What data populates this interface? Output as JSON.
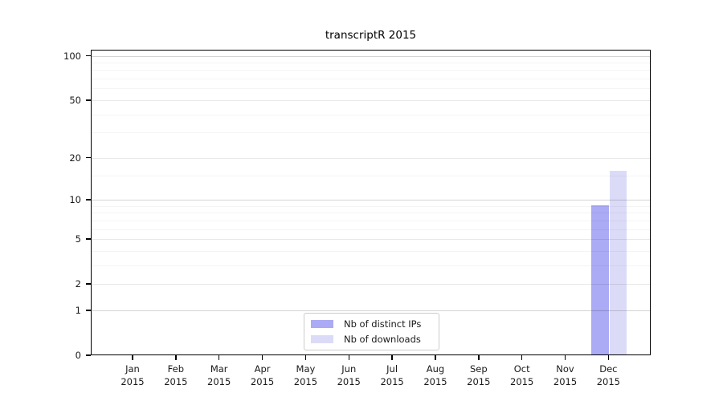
{
  "chart_data": {
    "type": "bar",
    "title": "transcriptR 2015",
    "x_axis": {
      "categories": [
        "Jan",
        "Feb",
        "Mar",
        "Apr",
        "May",
        "Jun",
        "Jul",
        "Aug",
        "Sep",
        "Oct",
        "Nov",
        "Dec"
      ],
      "year_label": "2015"
    },
    "y_axis": {
      "scale": "log1p",
      "ticks": [
        0,
        1,
        2,
        5,
        10,
        20,
        50,
        100
      ],
      "grid_decades": [
        1,
        10,
        100
      ],
      "grid_mid": [
        2,
        5,
        20,
        50
      ],
      "grid_minor": [
        3,
        4,
        6,
        7,
        8,
        9,
        15,
        30,
        40,
        60,
        70,
        80,
        90
      ],
      "ymax": 110,
      "ymin": 0
    },
    "series": [
      {
        "name": "Nb of distinct IPs",
        "color": "#aaaaf5",
        "values": [
          0,
          0,
          0,
          0,
          0,
          0,
          0,
          0,
          0,
          0,
          0,
          9
        ]
      },
      {
        "name": "Nb of downloads",
        "color": "#dbdbf8",
        "values": [
          0,
          0,
          0,
          0,
          0,
          0,
          0,
          0,
          0,
          0,
          0,
          16
        ]
      }
    ],
    "legend": {
      "position": "bottom-center",
      "entries": [
        "Nb of distinct IPs",
        "Nb of downloads"
      ]
    },
    "grid": true,
    "background": "#ffffff"
  }
}
